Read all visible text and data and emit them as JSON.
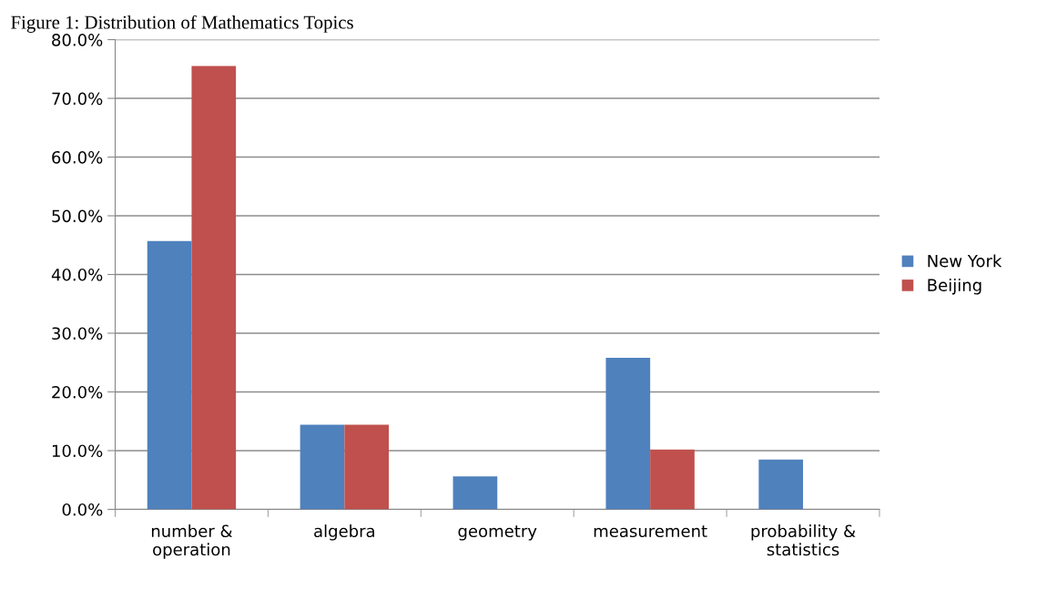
{
  "chart_data": {
    "type": "bar",
    "title": "Figure 1: Distribution of Mathematics Topics",
    "categories": [
      "number &\noperation",
      "algebra",
      "geometry",
      "measurement",
      "probability &\nstatistics"
    ],
    "series": [
      {
        "name": "New York",
        "color": "#4f81bd",
        "values": [
          45.7,
          14.4,
          5.6,
          25.8,
          8.5
        ]
      },
      {
        "name": "Beijing",
        "color": "#c0504d",
        "values": [
          75.5,
          14.4,
          null,
          10.2,
          null
        ]
      }
    ],
    "ylim": [
      0,
      80
    ],
    "yticks": [
      {
        "value": 0,
        "label": "0.0%"
      },
      {
        "value": 10,
        "label": "10.0%"
      },
      {
        "value": 20,
        "label": "20.0%"
      },
      {
        "value": 30,
        "label": "30.0%"
      },
      {
        "value": 40,
        "label": "40.0%"
      },
      {
        "value": 50,
        "label": "50.0%"
      },
      {
        "value": 60,
        "label": "60.0%"
      },
      {
        "value": 70,
        "label": "70.0%"
      },
      {
        "value": 80,
        "label": "80.0%"
      }
    ],
    "grid": "y",
    "legend": "right"
  }
}
